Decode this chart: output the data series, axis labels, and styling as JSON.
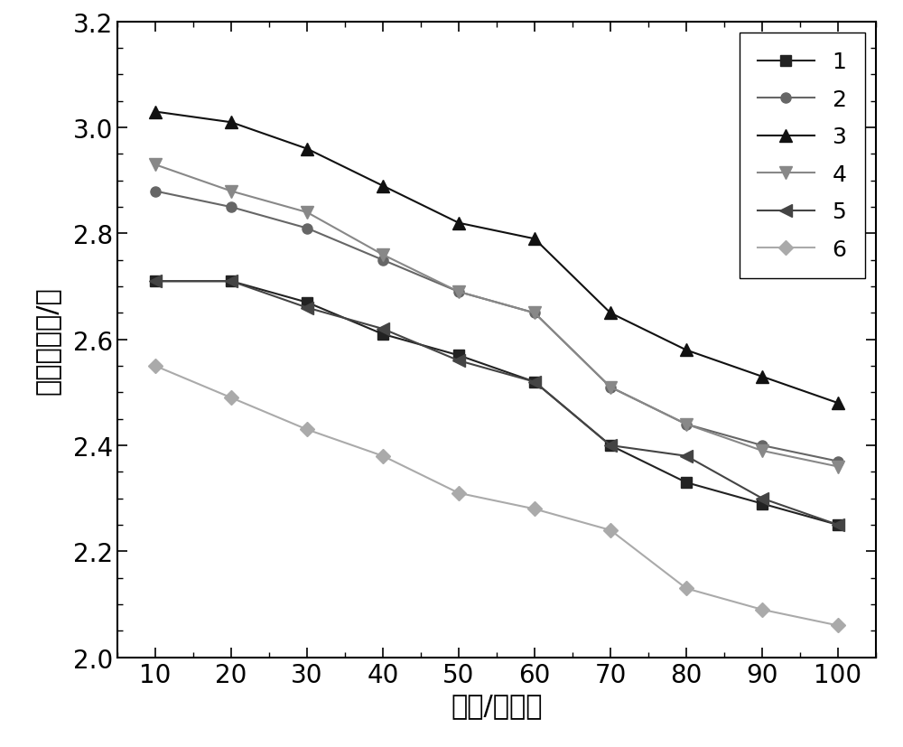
{
  "x": [
    10,
    20,
    30,
    40,
    50,
    60,
    70,
    80,
    90,
    100
  ],
  "series": {
    "1": {
      "y": [
        2.71,
        2.71,
        2.67,
        2.61,
        2.57,
        2.52,
        2.4,
        2.33,
        2.29,
        2.25
      ],
      "color": "#222222",
      "marker": "s",
      "label": "1",
      "linewidth": 1.5,
      "markersize": 8
    },
    "2": {
      "y": [
        2.88,
        2.85,
        2.81,
        2.75,
        2.69,
        2.65,
        2.51,
        2.44,
        2.4,
        2.37
      ],
      "color": "#666666",
      "marker": "o",
      "label": "2",
      "linewidth": 1.5,
      "markersize": 8
    },
    "3": {
      "y": [
        3.03,
        3.01,
        2.96,
        2.89,
        2.82,
        2.79,
        2.65,
        2.58,
        2.53,
        2.48
      ],
      "color": "#111111",
      "marker": "^",
      "label": "3",
      "linewidth": 1.5,
      "markersize": 10
    },
    "4": {
      "y": [
        2.93,
        2.88,
        2.84,
        2.76,
        2.69,
        2.65,
        2.51,
        2.44,
        2.39,
        2.36
      ],
      "color": "#888888",
      "marker": "v",
      "label": "4",
      "linewidth": 1.5,
      "markersize": 10
    },
    "5": {
      "y": [
        2.71,
        2.71,
        2.66,
        2.62,
        2.56,
        2.52,
        2.4,
        2.38,
        2.3,
        2.25
      ],
      "color": "#444444",
      "marker": "<",
      "label": "5",
      "linewidth": 1.5,
      "markersize": 10
    },
    "6": {
      "y": [
        2.55,
        2.49,
        2.43,
        2.38,
        2.31,
        2.28,
        2.24,
        2.13,
        2.09,
        2.06
      ],
      "color": "#aaaaaa",
      "marker": "D",
      "label": "6",
      "linewidth": 1.5,
      "markersize": 8
    }
  },
  "xlabel": "频率/千赫兹",
  "ylabel": "振幅磁导率/千",
  "xlim": [
    5,
    105
  ],
  "ylim": [
    2.0,
    3.2
  ],
  "yticks": [
    2.0,
    2.2,
    2.4,
    2.6,
    2.8,
    3.0,
    3.2
  ],
  "xticks": [
    10,
    20,
    30,
    40,
    50,
    60,
    70,
    80,
    90,
    100
  ],
  "legend_loc": "upper right",
  "figsize": [
    10.0,
    8.28
  ],
  "dpi": 100
}
